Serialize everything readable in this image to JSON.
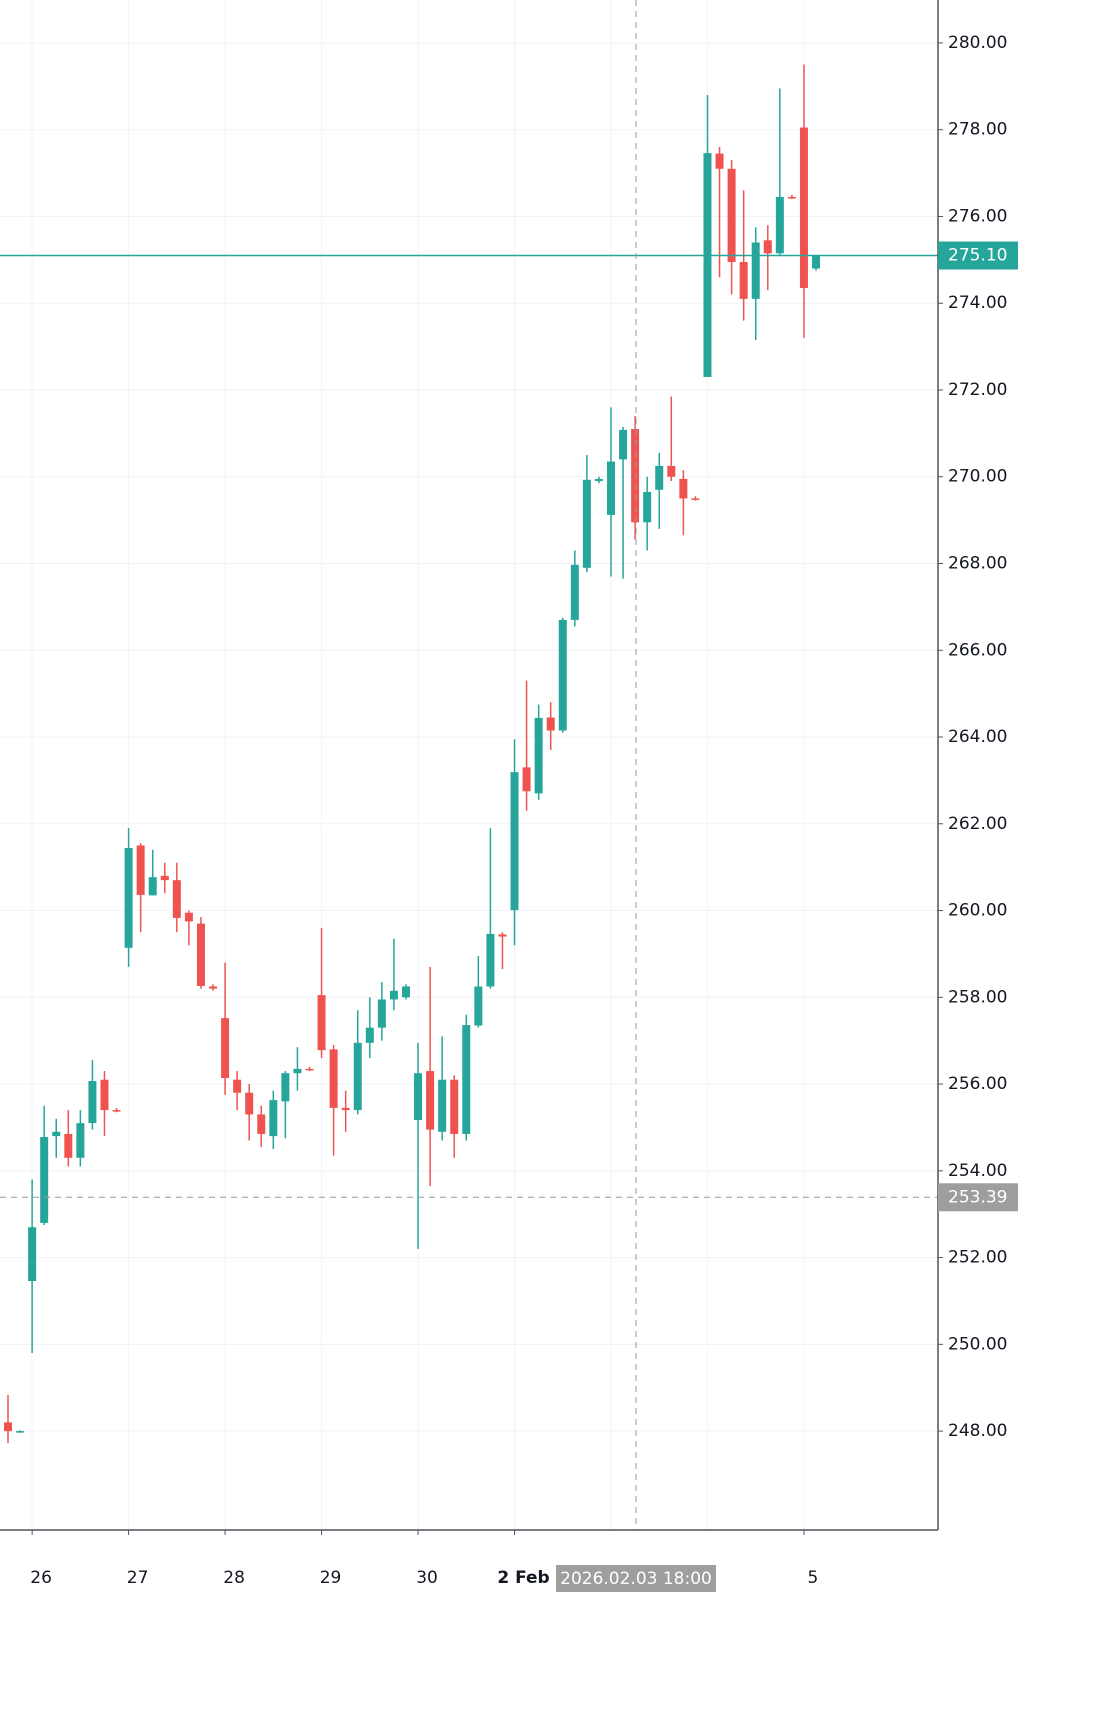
{
  "chart_data": {
    "type": "candlestick",
    "categories": [
      null,
      null,
      "26",
      null,
      null,
      null,
      null,
      null,
      null,
      null,
      "27",
      null,
      null,
      null,
      null,
      null,
      null,
      null,
      "28",
      null,
      null,
      null,
      null,
      null,
      null,
      null,
      "29",
      null,
      null,
      null,
      null,
      null,
      null,
      null,
      "30",
      null,
      null,
      null,
      null,
      null,
      null,
      null,
      "2 Feb",
      null,
      null,
      null,
      null,
      null,
      null,
      null,
      null,
      null,
      null,
      null,
      null,
      null,
      null,
      null,
      null,
      null,
      null,
      null,
      null,
      null,
      null,
      null,
      "5",
      null
    ],
    "open": [
      248.2,
      247.98,
      251.46,
      252.8,
      254.8,
      254.85,
      254.3,
      255.1,
      256.1,
      255.4,
      259.14,
      261.5,
      260.35,
      260.8,
      260.7,
      259.95,
      259.7,
      258.25,
      257.52,
      256.1,
      255.8,
      255.3,
      254.8,
      255.6,
      256.25,
      256.35,
      258.05,
      256.8,
      255.45,
      255.4,
      256.95,
      257.3,
      257.95,
      258.0,
      255.17,
      256.3,
      254.9,
      256.1,
      254.85,
      257.35,
      258.25,
      259.45,
      260.01,
      263.3,
      262.7,
      264.45,
      264.15,
      266.7,
      267.9,
      269.9,
      269.12,
      270.4,
      271.1,
      268.95,
      269.7,
      270.25,
      269.95,
      269.5,
      272.3,
      277.45,
      277.1,
      274.95,
      274.1,
      275.45,
      275.15,
      276.45,
      278.05,
      274.8
    ],
    "high": [
      248.83,
      248.02,
      253.8,
      255.5,
      255.2,
      255.4,
      255.4,
      256.55,
      256.3,
      255.45,
      261.9,
      261.55,
      261.4,
      261.1,
      261.1,
      260.0,
      259.85,
      258.3,
      258.8,
      256.3,
      256.0,
      255.5,
      255.85,
      256.3,
      256.85,
      256.4,
      259.6,
      256.9,
      255.85,
      257.7,
      258.0,
      258.35,
      259.35,
      258.3,
      256.95,
      258.7,
      257.1,
      256.2,
      257.6,
      258.95,
      261.9,
      259.5,
      263.95,
      265.3,
      264.75,
      264.8,
      266.75,
      268.3,
      270.5,
      270.0,
      271.6,
      271.15,
      271.4,
      270.0,
      270.55,
      271.85,
      270.15,
      269.55,
      278.8,
      277.6,
      277.3,
      276.6,
      275.75,
      275.8,
      278.95,
      276.5,
      279.5,
      275.1
    ],
    "low": [
      247.72,
      247.96,
      249.8,
      252.75,
      254.3,
      254.1,
      254.1,
      254.95,
      254.8,
      255.35,
      258.7,
      259.5,
      260.35,
      260.4,
      259.5,
      259.2,
      258.2,
      258.15,
      255.75,
      255.4,
      254.7,
      254.55,
      254.5,
      254.75,
      255.85,
      256.3,
      256.6,
      254.35,
      254.9,
      255.3,
      256.6,
      257.0,
      257.7,
      257.95,
      252.2,
      253.65,
      254.7,
      254.3,
      254.7,
      257.3,
      258.2,
      258.65,
      259.2,
      262.3,
      262.55,
      263.7,
      264.1,
      266.55,
      267.8,
      269.85,
      267.7,
      267.65,
      268.55,
      268.3,
      268.8,
      269.9,
      268.65,
      269.45,
      272.3,
      274.6,
      274.2,
      273.6,
      273.15,
      274.3,
      275.1,
      276.4,
      273.2,
      274.75
    ],
    "close": [
      248.0,
      248.0,
      252.7,
      254.78,
      254.9,
      254.3,
      255.1,
      256.07,
      255.4,
      255.38,
      261.44,
      260.36,
      260.77,
      260.7,
      259.83,
      259.75,
      258.26,
      258.2,
      256.14,
      255.8,
      255.3,
      254.85,
      255.63,
      256.25,
      256.35,
      256.33,
      256.78,
      255.45,
      255.4,
      256.95,
      257.3,
      257.95,
      258.15,
      258.25,
      256.25,
      254.95,
      256.1,
      254.85,
      257.36,
      258.25,
      259.46,
      259.4,
      263.19,
      262.75,
      264.44,
      264.15,
      266.7,
      267.97,
      269.93,
      269.95,
      270.35,
      271.08,
      268.95,
      269.65,
      270.25,
      270.0,
      269.5,
      269.48,
      277.46,
      277.1,
      274.95,
      274.1,
      275.4,
      275.15,
      276.45,
      276.42,
      274.35,
      275.1
    ],
    "up_color": "#26a69a",
    "down_color": "#ef5350",
    "ylim": [
      245.72,
      280.99
    ],
    "yticks": [
      {
        "value": 248,
        "label": "248.00"
      },
      {
        "value": 250,
        "label": "250.00"
      },
      {
        "value": 252,
        "label": "252.00"
      },
      {
        "value": 254,
        "label": "254.00"
      },
      {
        "value": 256,
        "label": "256.00"
      },
      {
        "value": 258,
        "label": "258.00"
      },
      {
        "value": 260,
        "label": "260.00"
      },
      {
        "value": 262,
        "label": "262.00"
      },
      {
        "value": 264,
        "label": "264.00"
      },
      {
        "value": 266,
        "label": "266.00"
      },
      {
        "value": 268,
        "label": "268.00"
      },
      {
        "value": 270,
        "label": "270.00"
      },
      {
        "value": 272,
        "label": "272.00"
      },
      {
        "value": 274,
        "label": "274.00"
      },
      {
        "value": 276,
        "label": "276.00"
      },
      {
        "value": 278,
        "label": "278.00"
      },
      {
        "value": 280,
        "label": "280.00"
      }
    ],
    "grid": true,
    "last_price": {
      "value": 275.1,
      "label": "275.10"
    },
    "crosshair": {
      "price": {
        "value": 253.39,
        "label": "253.39"
      },
      "time": "2026.02.03 18:00"
    }
  }
}
